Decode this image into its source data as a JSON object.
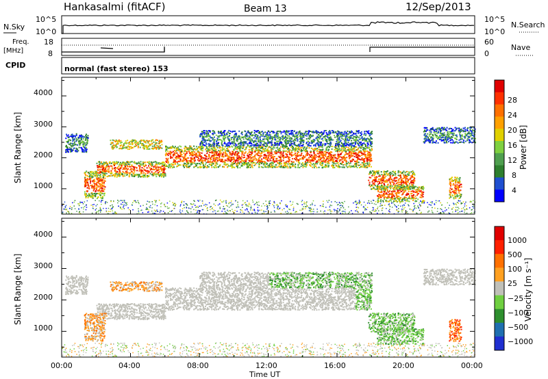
{
  "header": {
    "title": "Hankasalmi (fitACF)",
    "beam": "Beam 13",
    "date": "12/Sep/2013"
  },
  "top_panels": {
    "nsky_label": "N.Sky",
    "nsearch_label": "N.Search",
    "nsky_ticks": [
      "10^5",
      "10^0"
    ],
    "nsearch_ticks": [
      "10^5",
      "10^0"
    ],
    "freq_label_line1": "Freq.",
    "freq_label_line2": "[MHz]",
    "freq_ticks": [
      "18",
      "8"
    ],
    "nave_label": "Nave",
    "nave_ticks": [
      "60",
      "0"
    ],
    "cpid_label": "CPID",
    "cpid_text": "normal (fast stereo) 153"
  },
  "x_axis": {
    "label": "Time UT",
    "ticks": [
      "00:00",
      "04:00",
      "08:00",
      "12:00",
      "16:00",
      "20:00",
      "00:00"
    ]
  },
  "power_panel": {
    "ylabel": "Slant Range [km]",
    "yticks": [
      "4000",
      "3000",
      "2000",
      "1000"
    ],
    "colorbar_label": "Power [dB]",
    "colorbar_ticks": [
      "28",
      "24",
      "20",
      "16",
      "12",
      "8",
      "4"
    ],
    "colors": [
      "#0000ff",
      "#1f4fd0",
      "#2e7f2e",
      "#4f9f4f",
      "#7fd040",
      "#e0d000",
      "#ffa000",
      "#ff7000",
      "#ff3000",
      "#e00000"
    ]
  },
  "velocity_panel": {
    "ylabel": "Slant Range [km]",
    "yticks": [
      "4000",
      "3000",
      "2000",
      "1000"
    ],
    "colorbar_label": "Velocity [m s⁻¹]",
    "colorbar_ticks": [
      "1000",
      "500",
      "100",
      "25",
      "−25",
      "−100",
      "−500",
      "−1000"
    ],
    "colors": [
      "#1f2fd0",
      "#1f6fb0",
      "#2e8f2e",
      "#6fcf40",
      "#c0c0b8",
      "#ffa020",
      "#ff7000",
      "#ff2000",
      "#e00000"
    ]
  },
  "chart_data": {
    "type": "heatmap",
    "x_range_hours": [
      0,
      24
    ],
    "y_range_km": [
      180,
      4600
    ],
    "power_bands": [
      {
        "t0": 0.2,
        "t1": 1.5,
        "r0": 2200,
        "r1": 2800,
        "level": "low"
      },
      {
        "t0": 1.3,
        "t1": 2.5,
        "r0": 700,
        "r1": 1600,
        "level": "high"
      },
      {
        "t0": 2.0,
        "t1": 6.0,
        "r0": 1400,
        "r1": 1900,
        "level": "high"
      },
      {
        "t0": 2.8,
        "t1": 5.8,
        "r0": 2300,
        "r1": 2600,
        "level": "mid"
      },
      {
        "t0": 6.0,
        "t1": 18.0,
        "r0": 1700,
        "r1": 2400,
        "level": "high"
      },
      {
        "t0": 8.0,
        "t1": 18.0,
        "r0": 2400,
        "r1": 2900,
        "level": "low"
      },
      {
        "t0": 17.8,
        "t1": 20.5,
        "r0": 1000,
        "r1": 1600,
        "level": "high"
      },
      {
        "t0": 18.3,
        "t1": 21.0,
        "r0": 600,
        "r1": 1100,
        "level": "high"
      },
      {
        "t0": 21.0,
        "t1": 24.0,
        "r0": 2500,
        "r1": 3000,
        "level": "low"
      },
      {
        "t0": 22.5,
        "t1": 23.2,
        "r0": 700,
        "r1": 1400,
        "level": "high"
      }
    ]
  }
}
